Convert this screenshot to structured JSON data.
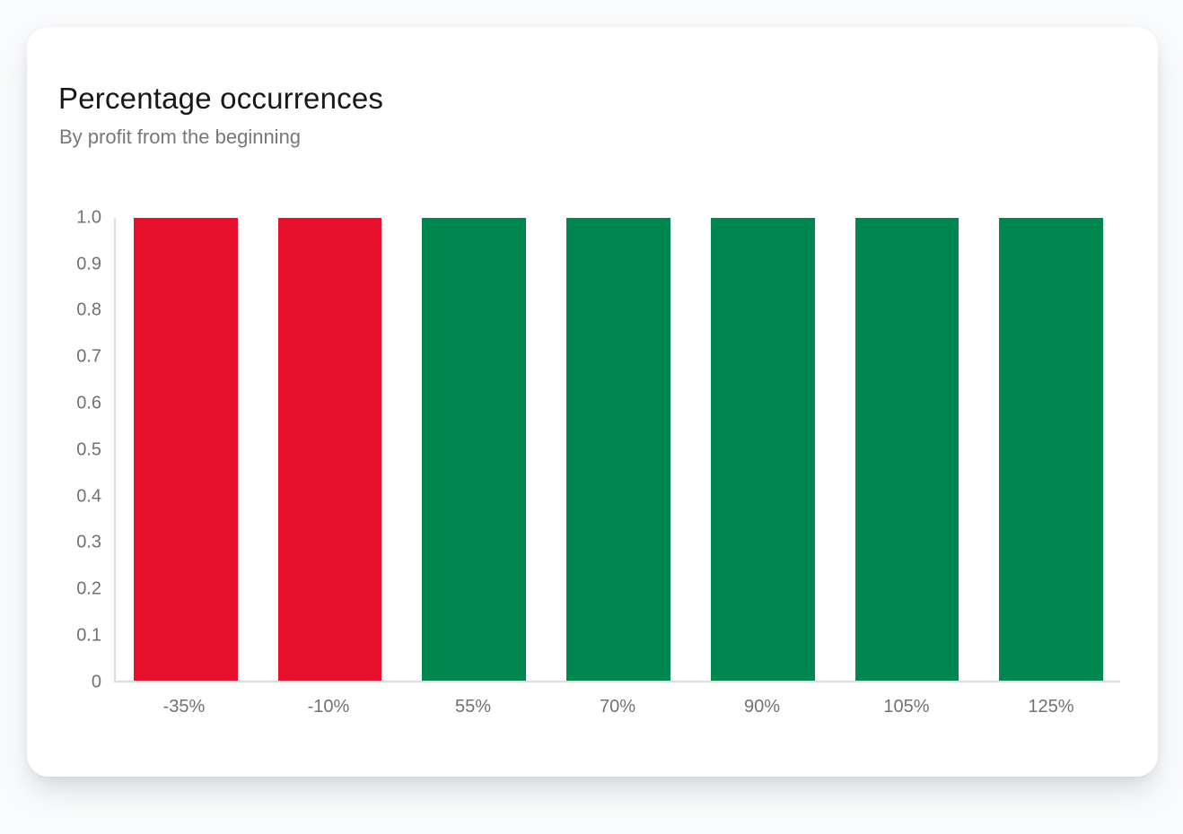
{
  "header": {
    "title": "Percentage occurrences",
    "subtitle": "By profit from the beginning"
  },
  "chart_data": {
    "type": "bar",
    "title": "Percentage occurrences",
    "subtitle": "By profit from the beginning",
    "categories": [
      "-35%",
      "-10%",
      "55%",
      "70%",
      "90%",
      "105%",
      "125%"
    ],
    "values": [
      1.0,
      1.0,
      1.0,
      1.0,
      1.0,
      1.0,
      1.0
    ],
    "bar_colors": [
      "#e8112d",
      "#e8112d",
      "#00874f",
      "#00874f",
      "#00874f",
      "#00874f",
      "#00874f"
    ],
    "negative_color": "#e8112d",
    "positive_color": "#00874f",
    "y_ticks": [
      "1.0",
      "0.9",
      "0.8",
      "0.7",
      "0.6",
      "0.5",
      "0.4",
      "0.3",
      "0.2",
      "0.1",
      "0"
    ],
    "ylim": [
      0,
      1.0
    ],
    "xlabel": "",
    "ylabel": "",
    "grid": "off",
    "legend": "none"
  },
  "colors": {
    "card_background": "#ffffff",
    "page_background": "#fafbfc",
    "axis_line": "#dcdde0",
    "tick_text": "#6f7275",
    "title_text": "#171819",
    "subtitle_text": "#75787b"
  }
}
